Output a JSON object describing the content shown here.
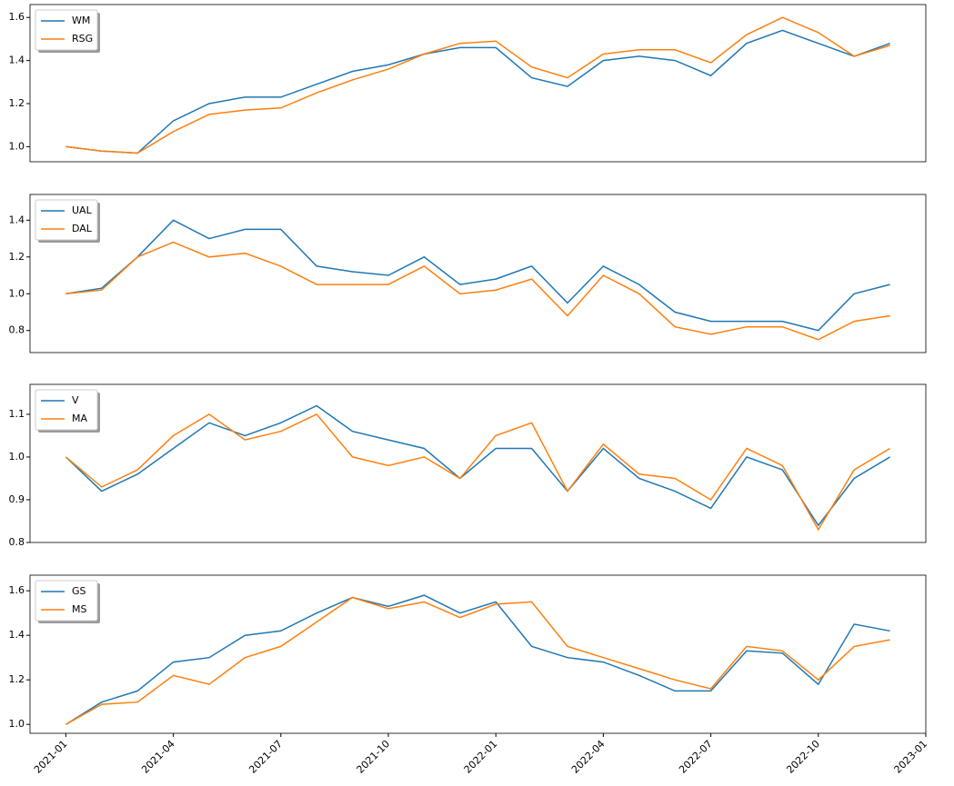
{
  "chart_data": [
    {
      "type": "line",
      "legend": "upper left",
      "xlim": [
        "2020-12",
        "2023-01"
      ],
      "ylim": [
        0.93,
        1.66
      ],
      "yticks": [
        {
          "value": 1.0,
          "label": "1.0"
        },
        {
          "value": 1.2,
          "label": "1.2"
        },
        {
          "value": 1.4,
          "label": "1.4"
        },
        {
          "value": 1.6,
          "label": "1.6"
        }
      ],
      "x": [
        "2021-01",
        "2021-02",
        "2021-03",
        "2021-04",
        "2021-05",
        "2021-06",
        "2021-07",
        "2021-08",
        "2021-09",
        "2021-10",
        "2021-11",
        "2021-12",
        "2022-01",
        "2022-02",
        "2022-03",
        "2022-04",
        "2022-05",
        "2022-06",
        "2022-07",
        "2022-08",
        "2022-09",
        "2022-10",
        "2022-11",
        "2022-12"
      ],
      "series": [
        {
          "name": "WM",
          "color": "#1f77b4",
          "values": [
            1.0,
            0.98,
            0.97,
            1.12,
            1.2,
            1.23,
            1.23,
            1.29,
            1.35,
            1.38,
            1.43,
            1.46,
            1.46,
            1.32,
            1.28,
            1.4,
            1.42,
            1.4,
            1.33,
            1.48,
            1.54,
            1.48,
            1.42,
            1.48
          ]
        },
        {
          "name": "RSG",
          "color": "#ff7f0e",
          "values": [
            1.0,
            0.98,
            0.97,
            1.07,
            1.15,
            1.17,
            1.18,
            1.25,
            1.31,
            1.36,
            1.43,
            1.48,
            1.49,
            1.37,
            1.32,
            1.43,
            1.45,
            1.45,
            1.39,
            1.52,
            1.6,
            1.53,
            1.42,
            1.47
          ]
        }
      ]
    },
    {
      "type": "line",
      "legend": "upper left",
      "xlim": [
        "2020-12",
        "2023-01"
      ],
      "ylim": [
        0.68,
        1.54
      ],
      "yticks": [
        {
          "value": 0.8,
          "label": "0.8"
        },
        {
          "value": 1.0,
          "label": "1.0"
        },
        {
          "value": 1.2,
          "label": "1.2"
        },
        {
          "value": 1.4,
          "label": "1.4"
        }
      ],
      "x": [
        "2021-01",
        "2021-02",
        "2021-03",
        "2021-04",
        "2021-05",
        "2021-06",
        "2021-07",
        "2021-08",
        "2021-09",
        "2021-10",
        "2021-11",
        "2021-12",
        "2022-01",
        "2022-02",
        "2022-03",
        "2022-04",
        "2022-05",
        "2022-06",
        "2022-07",
        "2022-08",
        "2022-09",
        "2022-10",
        "2022-11",
        "2022-12"
      ],
      "series": [
        {
          "name": "UAL",
          "color": "#1f77b4",
          "values": [
            1.0,
            1.03,
            1.2,
            1.4,
            1.3,
            1.35,
            1.35,
            1.15,
            1.12,
            1.1,
            1.2,
            1.05,
            1.08,
            1.15,
            0.95,
            1.15,
            1.05,
            0.9,
            0.85,
            0.85,
            0.85,
            0.8,
            1.0,
            1.05
          ]
        },
        {
          "name": "DAL",
          "color": "#ff7f0e",
          "values": [
            1.0,
            1.02,
            1.2,
            1.28,
            1.2,
            1.22,
            1.15,
            1.05,
            1.05,
            1.05,
            1.15,
            1.0,
            1.02,
            1.08,
            0.88,
            1.1,
            1.0,
            0.82,
            0.78,
            0.82,
            0.82,
            0.75,
            0.85,
            0.88
          ]
        }
      ]
    },
    {
      "type": "line",
      "legend": "upper left",
      "xlim": [
        "2020-12",
        "2023-01"
      ],
      "ylim": [
        0.8,
        1.17
      ],
      "yticks": [
        {
          "value": 0.8,
          "label": "0.8"
        },
        {
          "value": 0.9,
          "label": "0.9"
        },
        {
          "value": 1.0,
          "label": "1.0"
        },
        {
          "value": 1.1,
          "label": "1.1"
        }
      ],
      "x": [
        "2021-01",
        "2021-02",
        "2021-03",
        "2021-04",
        "2021-05",
        "2021-06",
        "2021-07",
        "2021-08",
        "2021-09",
        "2021-10",
        "2021-11",
        "2021-12",
        "2022-01",
        "2022-02",
        "2022-03",
        "2022-04",
        "2022-05",
        "2022-06",
        "2022-07",
        "2022-08",
        "2022-09",
        "2022-10",
        "2022-11",
        "2022-12"
      ],
      "series": [
        {
          "name": "V",
          "color": "#1f77b4",
          "values": [
            1.0,
            0.92,
            0.96,
            1.02,
            1.08,
            1.05,
            1.08,
            1.12,
            1.06,
            1.04,
            1.02,
            0.95,
            1.02,
            1.02,
            0.92,
            1.02,
            0.95,
            0.92,
            0.88,
            1.0,
            0.97,
            0.84,
            0.95,
            1.0
          ]
        },
        {
          "name": "MA",
          "color": "#ff7f0e",
          "values": [
            1.0,
            0.93,
            0.97,
            1.05,
            1.1,
            1.04,
            1.06,
            1.1,
            1.0,
            0.98,
            1.0,
            0.95,
            1.05,
            1.08,
            0.92,
            1.03,
            0.96,
            0.95,
            0.9,
            1.02,
            0.98,
            0.83,
            0.97,
            1.02
          ]
        }
      ]
    },
    {
      "type": "line",
      "legend": "upper left",
      "xlim": [
        "2020-12",
        "2023-01"
      ],
      "ylim": [
        0.96,
        1.67
      ],
      "yticks": [
        {
          "value": 1.0,
          "label": "1.0"
        },
        {
          "value": 1.2,
          "label": "1.2"
        },
        {
          "value": 1.4,
          "label": "1.4"
        },
        {
          "value": 1.6,
          "label": "1.6"
        }
      ],
      "xticks": [
        "2021-01",
        "2021-04",
        "2021-07",
        "2021-10",
        "2022-01",
        "2022-04",
        "2022-07",
        "2022-10",
        "2023-01"
      ],
      "x": [
        "2021-01",
        "2021-02",
        "2021-03",
        "2021-04",
        "2021-05",
        "2021-06",
        "2021-07",
        "2021-08",
        "2021-09",
        "2021-10",
        "2021-11",
        "2021-12",
        "2022-01",
        "2022-02",
        "2022-03",
        "2022-04",
        "2022-05",
        "2022-06",
        "2022-07",
        "2022-08",
        "2022-09",
        "2022-10",
        "2022-11",
        "2022-12"
      ],
      "series": [
        {
          "name": "GS",
          "color": "#1f77b4",
          "values": [
            1.0,
            1.1,
            1.15,
            1.28,
            1.3,
            1.4,
            1.42,
            1.5,
            1.57,
            1.53,
            1.58,
            1.5,
            1.55,
            1.35,
            1.3,
            1.28,
            1.22,
            1.15,
            1.15,
            1.33,
            1.32,
            1.18,
            1.45,
            1.42
          ]
        },
        {
          "name": "MS",
          "color": "#ff7f0e",
          "values": [
            1.0,
            1.09,
            1.1,
            1.22,
            1.18,
            1.3,
            1.35,
            1.46,
            1.57,
            1.52,
            1.55,
            1.48,
            1.54,
            1.55,
            1.35,
            1.3,
            1.25,
            1.2,
            1.16,
            1.35,
            1.33,
            1.2,
            1.35,
            1.38
          ]
        }
      ]
    }
  ]
}
